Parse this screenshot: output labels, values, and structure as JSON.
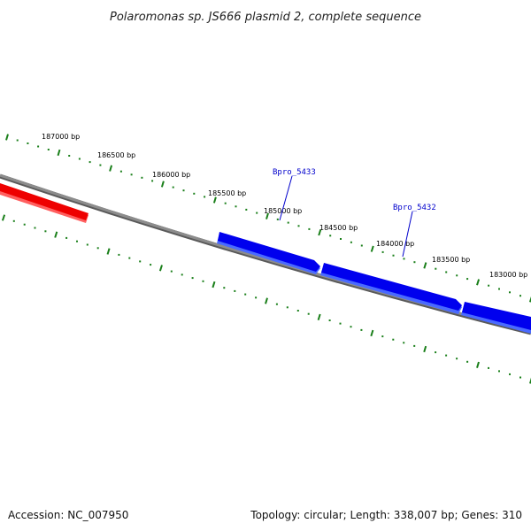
{
  "title": "Polaromonas sp. JS666 plasmid 2, complete sequence",
  "footer": {
    "accession": "Accession: NC_007950",
    "summary": "Topology: circular; Length: 338,007 bp; Genes: 310"
  },
  "colors": {
    "backbone": "#808080",
    "forward_gene": "#0000ee",
    "reverse_gene": "#ee0000",
    "ticks": "#1a7f1a",
    "gene_label": "#0000cc"
  },
  "tick_labels": [
    "187000 bp",
    "186500 bp",
    "186000 bp",
    "185500 bp",
    "185000 bp",
    "184500 bp",
    "184000 bp",
    "183500 bp",
    "183000 bp"
  ],
  "gene_labels": [
    "Bpro_5433",
    "Bpro_5432"
  ]
}
